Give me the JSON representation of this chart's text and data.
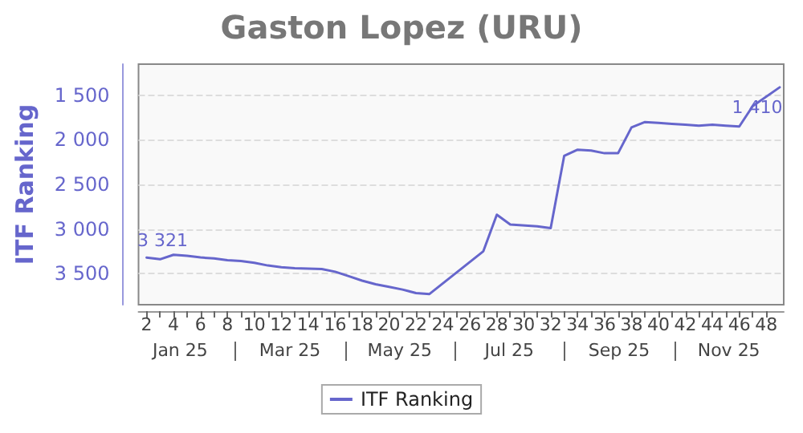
{
  "chart_data": {
    "type": "line",
    "title": "Gaston Lopez (URU)",
    "ylabel": "ITF Ranking",
    "annotations": [
      "Jan 25",
      "Mar 25",
      "May 25",
      "Jul 25",
      "Sep 25",
      "Nov 25"
    ],
    "x": [
      2,
      3,
      4,
      5,
      6,
      7,
      8,
      9,
      10,
      11,
      12,
      13,
      15,
      16,
      17,
      18,
      19,
      20,
      21,
      22,
      23,
      27,
      28,
      29,
      31,
      32,
      33,
      34,
      35,
      36,
      37,
      38,
      39,
      40,
      41,
      42,
      43,
      44,
      45,
      46,
      47,
      49
    ],
    "series": [
      {
        "name": "ITF Ranking",
        "color": "#6666cc",
        "values": [
          3321,
          3340,
          3290,
          3300,
          3320,
          3330,
          3350,
          3360,
          3380,
          3410,
          3430,
          3440,
          3450,
          3480,
          3530,
          3580,
          3620,
          3650,
          3680,
          3720,
          3730,
          3250,
          2840,
          2950,
          2970,
          2990,
          2180,
          2110,
          2120,
          2150,
          2150,
          1860,
          1800,
          1810,
          1820,
          1830,
          1840,
          1830,
          1840,
          1850,
          1620,
          1410
        ],
        "value_labels": [
          "3 321",
          null,
          null,
          null,
          null,
          null,
          null,
          null,
          null,
          null,
          null,
          null,
          null,
          null,
          null,
          null,
          null,
          null,
          null,
          null,
          null,
          null,
          null,
          null,
          null,
          null,
          null,
          null,
          null,
          null,
          null,
          null,
          null,
          null,
          null,
          null,
          null,
          null,
          null,
          null,
          null,
          "1 410"
        ]
      }
    ],
    "xlim": [
      1.4,
      49.3
    ],
    "xticks": [
      2,
      {
        "value": 3,
        "label": null
      },
      4,
      {
        "value": 5,
        "label": null
      },
      6,
      {
        "value": 7,
        "label": null
      },
      8,
      {
        "value": 9,
        "label": null
      },
      10,
      {
        "value": 11,
        "label": null
      },
      12,
      {
        "value": 13,
        "label": null
      },
      14,
      {
        "value": 15,
        "label": null
      },
      16,
      {
        "value": 17,
        "label": null
      },
      18,
      {
        "value": 19,
        "label": null
      },
      20,
      {
        "value": 21,
        "label": null
      },
      22,
      {
        "value": 23,
        "label": null
      },
      24,
      {
        "value": 25,
        "label": null
      },
      26,
      {
        "value": 27,
        "label": null
      },
      28,
      {
        "value": 29,
        "label": null
      },
      30,
      {
        "value": 31,
        "label": null
      },
      32,
      {
        "value": 33,
        "label": null
      },
      34,
      {
        "value": 35,
        "label": null
      },
      36,
      {
        "value": 37,
        "label": null
      },
      38,
      {
        "value": 39,
        "label": null
      },
      40,
      {
        "value": 41,
        "label": null
      },
      42,
      {
        "value": 43,
        "label": null
      },
      44,
      {
        "value": 45,
        "label": null
      },
      46,
      {
        "value": 47,
        "label": null
      },
      48
    ],
    "ylim": [
      3850,
      1150
    ],
    "yticks": [
      {
        "value": 1500,
        "label": "1 500"
      },
      {
        "value": 2000,
        "label": "2 000"
      },
      {
        "value": 2500,
        "label": "2 500"
      },
      {
        "value": 3000,
        "label": "3 000"
      },
      {
        "value": 3500,
        "label": "3 500"
      }
    ],
    "grid": "y",
    "legend": "bottom",
    "marker": "none",
    "line_style": "solid"
  }
}
